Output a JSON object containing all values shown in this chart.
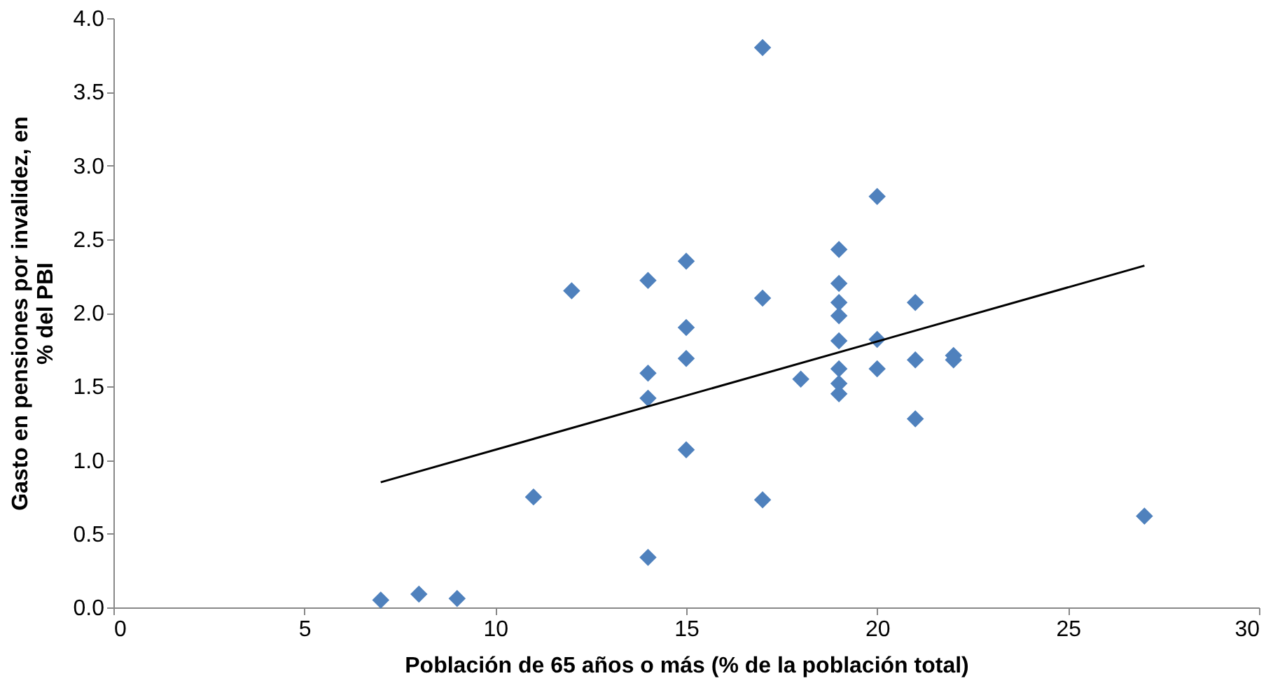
{
  "chart_data": {
    "type": "scatter",
    "xlabel": "Población de 65 años o más (% de la población total)",
    "ylabel": "Gasto en pensiones por invalidez, en % del PBI",
    "xlim": [
      0,
      30
    ],
    "xticks": [
      0,
      5,
      10,
      15,
      20,
      25,
      30
    ],
    "ylim": [
      0,
      4
    ],
    "yticks": [
      {
        "value": 0,
        "label": "0.0"
      },
      {
        "value": 0.5,
        "label": "0.5"
      },
      {
        "value": 1,
        "label": "1.0"
      },
      {
        "value": 1.5,
        "label": "1.5"
      },
      {
        "value": 2,
        "label": "2.0"
      },
      {
        "value": 2.5,
        "label": "2.5"
      },
      {
        "value": 3,
        "label": "3.0"
      },
      {
        "value": 3.5,
        "label": "3.5"
      },
      {
        "value": 4,
        "label": "4.0"
      }
    ],
    "grid": false,
    "series": [
      {
        "color": "#4f81bd",
        "marker": "diamond",
        "x": [
          7,
          8,
          9,
          11,
          12,
          14,
          14,
          14,
          14,
          15,
          15,
          15,
          15,
          17,
          17,
          17,
          18,
          19,
          19,
          19,
          19,
          19,
          19,
          19,
          19,
          20,
          20,
          20,
          21,
          21,
          21,
          22,
          22,
          27
        ],
        "values": [
          0.05,
          0.09,
          0.06,
          0.75,
          2.15,
          2.22,
          1.59,
          1.42,
          0.34,
          2.35,
          1.9,
          1.69,
          1.07,
          3.8,
          2.1,
          0.73,
          1.55,
          2.43,
          2.2,
          2.07,
          1.98,
          1.81,
          1.62,
          1.52,
          1.45,
          2.79,
          1.82,
          1.62,
          2.07,
          1.68,
          1.28,
          1.71,
          1.68,
          0.62
        ]
      },
      {
        "type": "line",
        "color": "#000000",
        "marker": "none",
        "line_style": "solid",
        "x": [
          7,
          27
        ],
        "values": [
          0.85,
          2.32
        ]
      }
    ]
  }
}
